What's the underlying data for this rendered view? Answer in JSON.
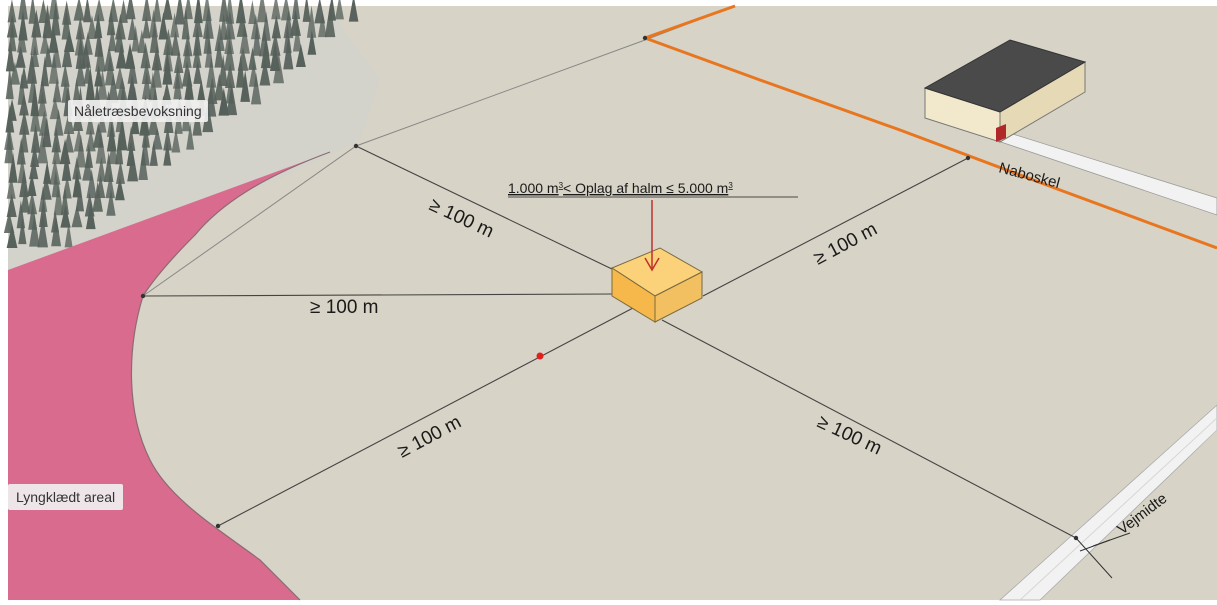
{
  "labels": {
    "forest": "Nåletræsbevoksning",
    "heath": "Lyngklædt areal",
    "neighbor": "Naboskel",
    "road": "Vejmidte",
    "storage_pre": "1.000 m",
    "storage_sup1": "3",
    "storage_mid": "< Oplag af halm ≤ 5.000 m",
    "storage_sup2": "3"
  },
  "distances": {
    "upper_left": "≥ 100 m",
    "left": "≥ 100 m",
    "lower_left": "≥ 100 m",
    "upper_right": "≥ 100 m",
    "lower_right": "≥ 100 m"
  },
  "colors": {
    "ground": "#d7d3c6",
    "heath": "#d96b8e",
    "boundary": "#e8761f",
    "road": "#f2f2f2",
    "straw": "#f6bf4e",
    "pointer": "#c0302a",
    "forest": "#56605a"
  }
}
